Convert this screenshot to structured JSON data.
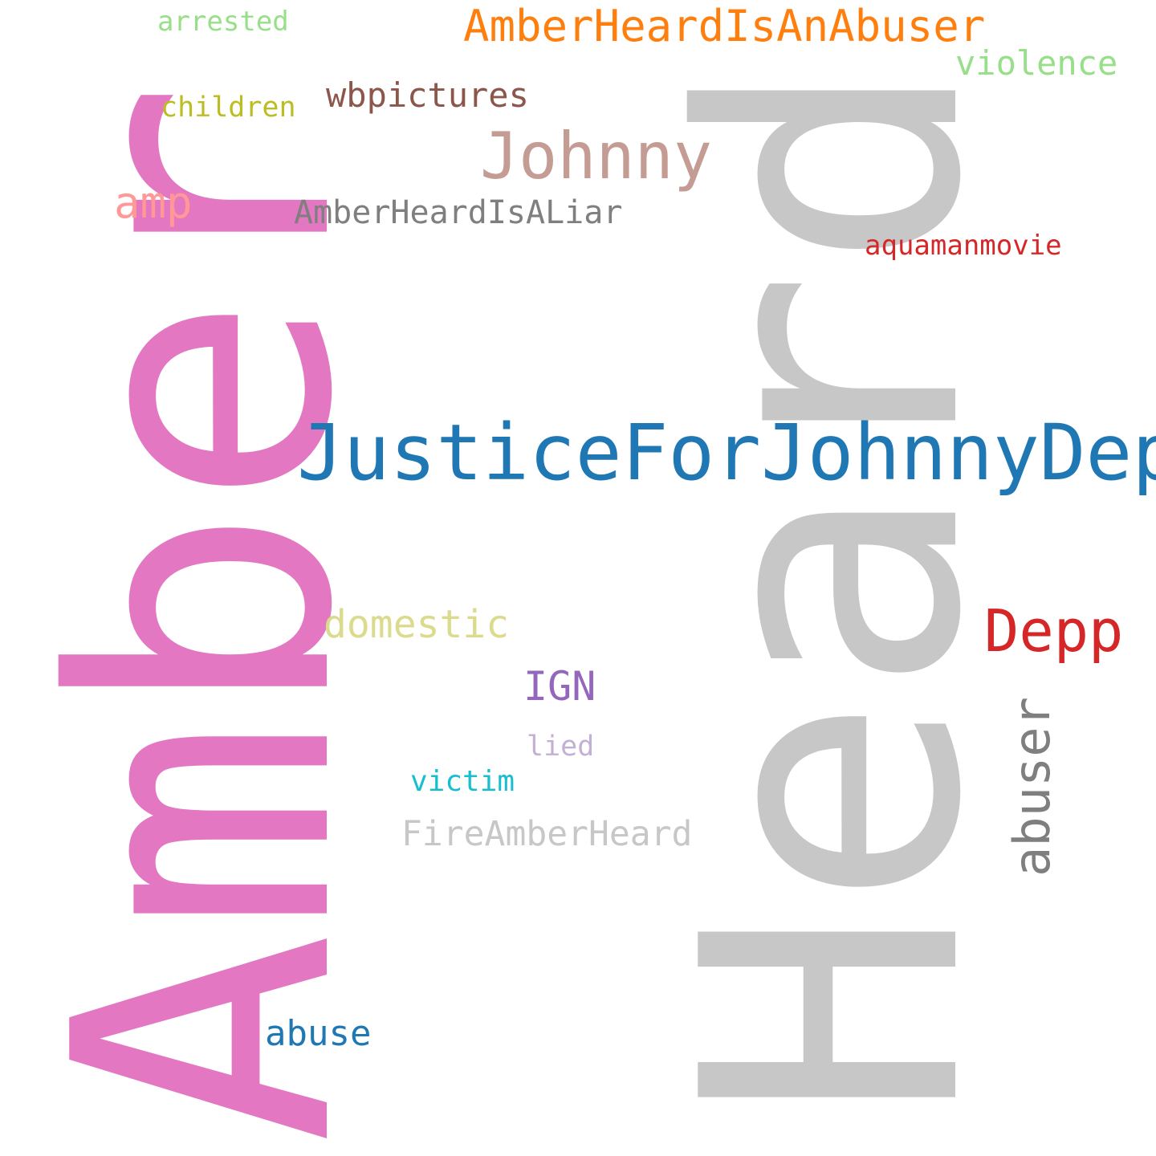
{
  "cloud": {
    "background": "#ffffff",
    "words": {
      "amber": {
        "text": "Amber",
        "color": "#e377c2",
        "orientation": "vertical"
      },
      "heard": {
        "text": "Heard",
        "color": "#c7c7c7",
        "orientation": "vertical"
      },
      "justice": {
        "text": "JusticeForJohnnyDepp",
        "color": "#1f77b4",
        "orientation": "horizontal"
      },
      "johnny": {
        "text": "Johnny",
        "color": "#c49c94",
        "orientation": "horizontal"
      },
      "depp": {
        "text": "Depp",
        "color": "#d62728",
        "orientation": "horizontal"
      },
      "abuser_hash": {
        "text": "AmberHeardIsAnAbuser",
        "color": "#ff7f0e",
        "orientation": "horizontal"
      },
      "violence": {
        "text": "violence",
        "color": "#98df8a",
        "orientation": "horizontal"
      },
      "wbpictures": {
        "text": "wbpictures",
        "color": "#8c564b",
        "orientation": "horizontal"
      },
      "amp": {
        "text": "amp",
        "color": "#ff9896",
        "orientation": "horizontal"
      },
      "liar": {
        "text": "AmberHeardIsALiar",
        "color": "#7f7f7f",
        "orientation": "horizontal"
      },
      "aquaman": {
        "text": "aquamanmovie",
        "color": "#d62728",
        "orientation": "horizontal"
      },
      "children": {
        "text": "children",
        "color": "#bcbd22",
        "orientation": "horizontal"
      },
      "arrested": {
        "text": "arrested",
        "color": "#98df8a",
        "orientation": "horizontal"
      },
      "domestic": {
        "text": "domestic",
        "color": "#dbdb8d",
        "orientation": "horizontal"
      },
      "ign": {
        "text": "IGN",
        "color": "#9467bd",
        "orientation": "horizontal"
      },
      "lied": {
        "text": "lied",
        "color": "#c5b0d5",
        "orientation": "horizontal"
      },
      "victim": {
        "text": "victim",
        "color": "#17becf",
        "orientation": "horizontal"
      },
      "fire": {
        "text": "FireAmberHeard",
        "color": "#c7c7c7",
        "orientation": "horizontal"
      },
      "abuse": {
        "text": "abuse",
        "color": "#1f77b4",
        "orientation": "horizontal"
      },
      "abuser": {
        "text": "abuser",
        "color": "#7f7f7f",
        "orientation": "vertical"
      }
    }
  }
}
